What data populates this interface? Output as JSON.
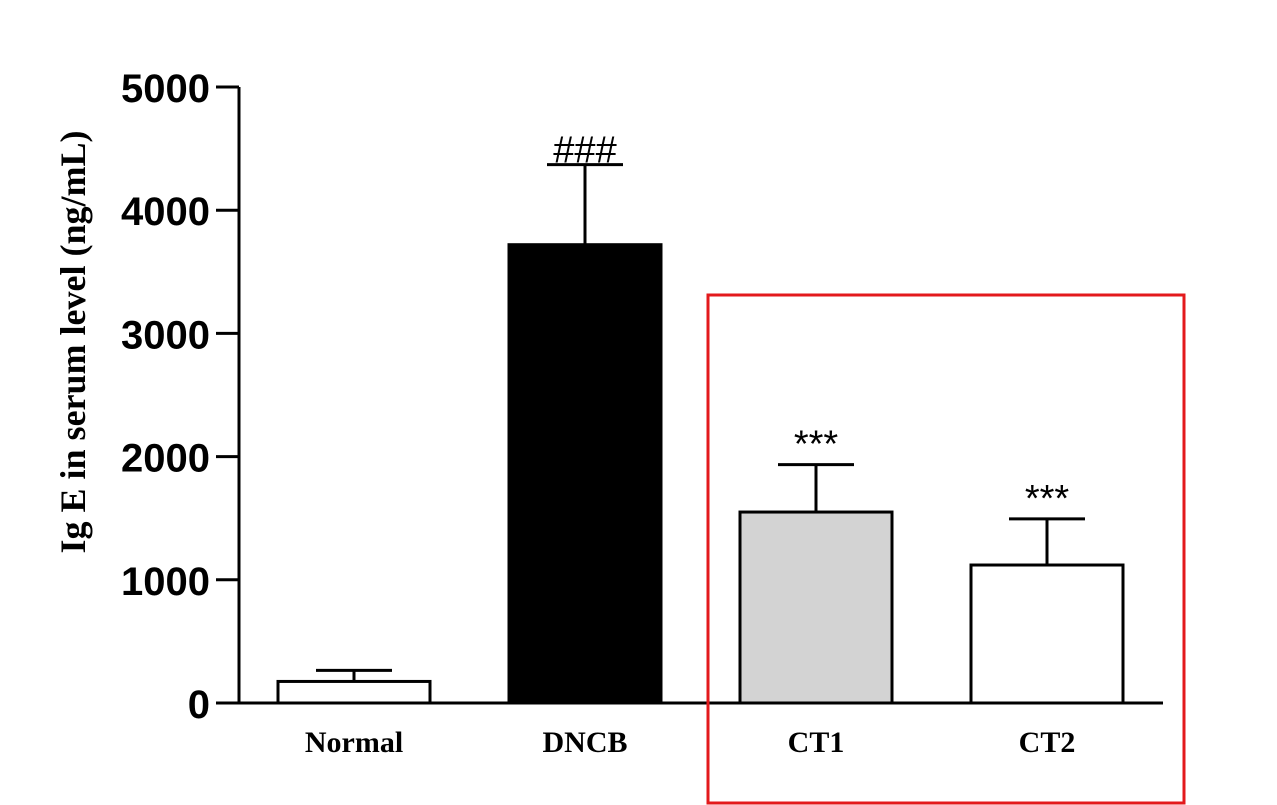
{
  "chart_data": {
    "type": "bar",
    "ylabel": "Ig E in serum level  (ng/mL)",
    "xlabel": "",
    "ylim": [
      0,
      5000
    ],
    "yticks": [
      0,
      1000,
      2000,
      3000,
      4000,
      5000
    ],
    "tick_labels": [
      "0",
      "1000",
      "2000",
      "3000",
      "4000",
      "5000"
    ],
    "categories": [
      "Normal",
      "DNCB",
      "CT1",
      "CT2"
    ],
    "values": [
      175,
      3720,
      1550,
      1120
    ],
    "errors": [
      90,
      650,
      385,
      375
    ],
    "annotations": [
      "",
      "###",
      "***",
      "***"
    ],
    "bar_colors": [
      "#ffffff",
      "#000000",
      "#d3d3d3",
      "#ffffff"
    ],
    "highlight_box_color": "#e31a1c",
    "highlighted_categories": [
      "CT1",
      "CT2"
    ],
    "grid": false
  }
}
